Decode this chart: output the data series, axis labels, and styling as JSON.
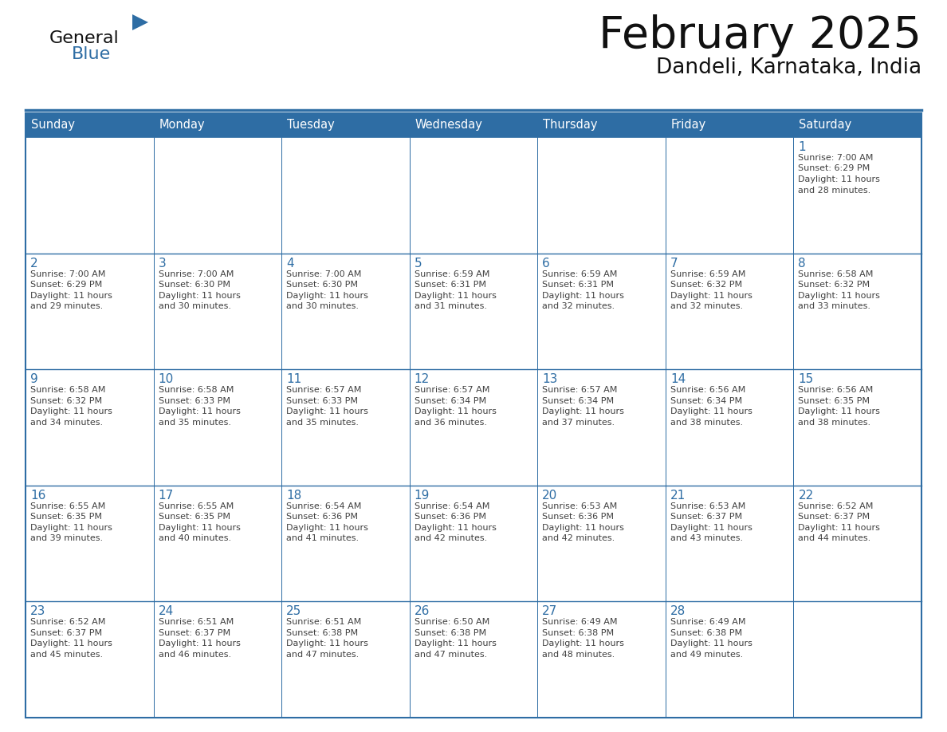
{
  "title": "February 2025",
  "subtitle": "Dandeli, Karnataka, India",
  "header_bg": "#2E6DA4",
  "header_text_color": "#FFFFFF",
  "cell_bg_white": "#FFFFFF",
  "day_number_color": "#2E6DA4",
  "info_text_color": "#404040",
  "border_color": "#2E6DA4",
  "days_of_week": [
    "Sunday",
    "Monday",
    "Tuesday",
    "Wednesday",
    "Thursday",
    "Friday",
    "Saturday"
  ],
  "calendar_data": [
    [
      null,
      null,
      null,
      null,
      null,
      null,
      {
        "day": 1,
        "sunrise": "7:00 AM",
        "sunset": "6:29 PM",
        "daylight_hours": 11,
        "daylight_minutes": 28
      }
    ],
    [
      {
        "day": 2,
        "sunrise": "7:00 AM",
        "sunset": "6:29 PM",
        "daylight_hours": 11,
        "daylight_minutes": 29
      },
      {
        "day": 3,
        "sunrise": "7:00 AM",
        "sunset": "6:30 PM",
        "daylight_hours": 11,
        "daylight_minutes": 30
      },
      {
        "day": 4,
        "sunrise": "7:00 AM",
        "sunset": "6:30 PM",
        "daylight_hours": 11,
        "daylight_minutes": 30
      },
      {
        "day": 5,
        "sunrise": "6:59 AM",
        "sunset": "6:31 PM",
        "daylight_hours": 11,
        "daylight_minutes": 31
      },
      {
        "day": 6,
        "sunrise": "6:59 AM",
        "sunset": "6:31 PM",
        "daylight_hours": 11,
        "daylight_minutes": 32
      },
      {
        "day": 7,
        "sunrise": "6:59 AM",
        "sunset": "6:32 PM",
        "daylight_hours": 11,
        "daylight_minutes": 32
      },
      {
        "day": 8,
        "sunrise": "6:58 AM",
        "sunset": "6:32 PM",
        "daylight_hours": 11,
        "daylight_minutes": 33
      }
    ],
    [
      {
        "day": 9,
        "sunrise": "6:58 AM",
        "sunset": "6:32 PM",
        "daylight_hours": 11,
        "daylight_minutes": 34
      },
      {
        "day": 10,
        "sunrise": "6:58 AM",
        "sunset": "6:33 PM",
        "daylight_hours": 11,
        "daylight_minutes": 35
      },
      {
        "day": 11,
        "sunrise": "6:57 AM",
        "sunset": "6:33 PM",
        "daylight_hours": 11,
        "daylight_minutes": 35
      },
      {
        "day": 12,
        "sunrise": "6:57 AM",
        "sunset": "6:34 PM",
        "daylight_hours": 11,
        "daylight_minutes": 36
      },
      {
        "day": 13,
        "sunrise": "6:57 AM",
        "sunset": "6:34 PM",
        "daylight_hours": 11,
        "daylight_minutes": 37
      },
      {
        "day": 14,
        "sunrise": "6:56 AM",
        "sunset": "6:34 PM",
        "daylight_hours": 11,
        "daylight_minutes": 38
      },
      {
        "day": 15,
        "sunrise": "6:56 AM",
        "sunset": "6:35 PM",
        "daylight_hours": 11,
        "daylight_minutes": 38
      }
    ],
    [
      {
        "day": 16,
        "sunrise": "6:55 AM",
        "sunset": "6:35 PM",
        "daylight_hours": 11,
        "daylight_minutes": 39
      },
      {
        "day": 17,
        "sunrise": "6:55 AM",
        "sunset": "6:35 PM",
        "daylight_hours": 11,
        "daylight_minutes": 40
      },
      {
        "day": 18,
        "sunrise": "6:54 AM",
        "sunset": "6:36 PM",
        "daylight_hours": 11,
        "daylight_minutes": 41
      },
      {
        "day": 19,
        "sunrise": "6:54 AM",
        "sunset": "6:36 PM",
        "daylight_hours": 11,
        "daylight_minutes": 42
      },
      {
        "day": 20,
        "sunrise": "6:53 AM",
        "sunset": "6:36 PM",
        "daylight_hours": 11,
        "daylight_minutes": 42
      },
      {
        "day": 21,
        "sunrise": "6:53 AM",
        "sunset": "6:37 PM",
        "daylight_hours": 11,
        "daylight_minutes": 43
      },
      {
        "day": 22,
        "sunrise": "6:52 AM",
        "sunset": "6:37 PM",
        "daylight_hours": 11,
        "daylight_minutes": 44
      }
    ],
    [
      {
        "day": 23,
        "sunrise": "6:52 AM",
        "sunset": "6:37 PM",
        "daylight_hours": 11,
        "daylight_minutes": 45
      },
      {
        "day": 24,
        "sunrise": "6:51 AM",
        "sunset": "6:37 PM",
        "daylight_hours": 11,
        "daylight_minutes": 46
      },
      {
        "day": 25,
        "sunrise": "6:51 AM",
        "sunset": "6:38 PM",
        "daylight_hours": 11,
        "daylight_minutes": 47
      },
      {
        "day": 26,
        "sunrise": "6:50 AM",
        "sunset": "6:38 PM",
        "daylight_hours": 11,
        "daylight_minutes": 47
      },
      {
        "day": 27,
        "sunrise": "6:49 AM",
        "sunset": "6:38 PM",
        "daylight_hours": 11,
        "daylight_minutes": 48
      },
      {
        "day": 28,
        "sunrise": "6:49 AM",
        "sunset": "6:38 PM",
        "daylight_hours": 11,
        "daylight_minutes": 49
      },
      null
    ]
  ],
  "logo_text_general": "General",
  "logo_text_blue": "Blue",
  "logo_triangle_color": "#2E6DA4",
  "fig_width": 11.88,
  "fig_height": 9.18,
  "dpi": 100
}
